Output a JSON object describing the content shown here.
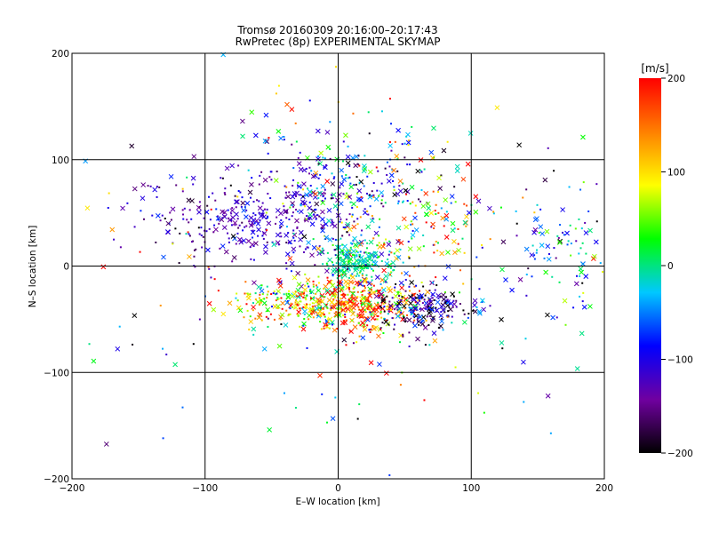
{
  "chart_data": {
    "type": "scatter",
    "title": "Tromsø 20160309 20:16:00–20:17:43",
    "subtitle": "RwPretec (8p) EXPERIMENTAL SKYMAP",
    "xlabel": "E–W location [km]",
    "ylabel": "N–S location [km]",
    "xlim": [
      -200,
      200
    ],
    "ylim": [
      -200,
      200
    ],
    "xticks": [
      "−200",
      "−100",
      "0",
      "100",
      "200"
    ],
    "yticks": [
      "−200",
      "−100",
      "0",
      "100",
      "200"
    ],
    "grid": true,
    "markers": [
      "x",
      "dot"
    ],
    "colorbar": {
      "label": "[m/s]",
      "range": [
        -200,
        200
      ],
      "ticks": [
        "−200",
        "−100",
        "0",
        "100",
        "200"
      ],
      "colormap": [
        "#000000",
        "#7000a0",
        "#0000ff",
        "#00c8ff",
        "#00ff00",
        "#ffff00",
        "#ff8000",
        "#ff0000"
      ]
    },
    "clusters": [
      {
        "x": -40,
        "y": 45,
        "sx": 38,
        "sy": 25,
        "v": -120,
        "sv": 25,
        "n": 330
      },
      {
        "x": -115,
        "y": 45,
        "sx": 25,
        "sy": 22,
        "v": -140,
        "sv": 35,
        "n": 70
      },
      {
        "x": 10,
        "y": 80,
        "sx": 35,
        "sy": 28,
        "v": -60,
        "sv": 80,
        "n": 150
      },
      {
        "x": 30,
        "y": 35,
        "sx": 40,
        "sy": 40,
        "v": 20,
        "sv": 90,
        "n": 140
      },
      {
        "x": 75,
        "y": 40,
        "sx": 25,
        "sy": 30,
        "v": 130,
        "sv": 60,
        "n": 60
      },
      {
        "x": 15,
        "y": 5,
        "sx": 12,
        "sy": 8,
        "v": -5,
        "sv": 20,
        "n": 170
      },
      {
        "x": -30,
        "y": -35,
        "sx": 25,
        "sy": 10,
        "v": 70,
        "sv": 80,
        "n": 220
      },
      {
        "x": 15,
        "y": -35,
        "sx": 20,
        "sy": 14,
        "v": 140,
        "sv": 70,
        "n": 330
      },
      {
        "x": 65,
        "y": -40,
        "sx": 20,
        "sy": 12,
        "v": -130,
        "sv": 60,
        "n": 210
      },
      {
        "x": 170,
        "y": 5,
        "sx": 20,
        "sy": 25,
        "v": -60,
        "sv": 80,
        "n": 90
      },
      {
        "x": 0,
        "y": 0,
        "sx": 110,
        "sy": 100,
        "v": 0,
        "sv": 130,
        "n": 230
      }
    ]
  }
}
